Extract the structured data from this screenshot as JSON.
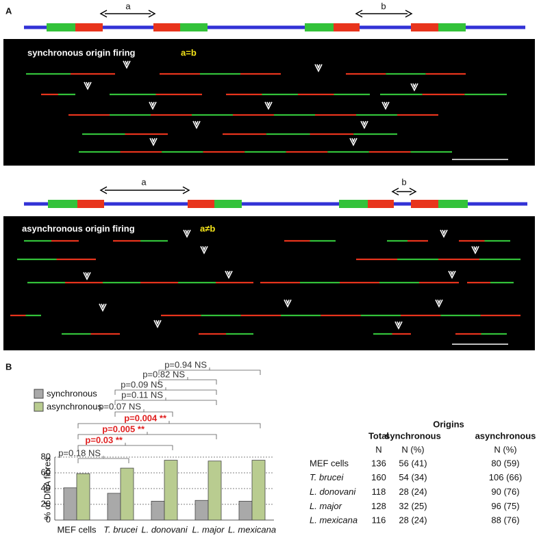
{
  "panels": {
    "a": {
      "label": "A",
      "schematic_1": {
        "arrow_a": "a",
        "arrow_b": "b"
      },
      "image_1": {
        "caption": "synchronous origin firing",
        "relation": "a=b"
      },
      "schematic_2": {
        "arrow_a": "a",
        "arrow_b": "b"
      },
      "image_2": {
        "caption": "asynchronous origin firing",
        "relation": "a≠b"
      }
    },
    "b": {
      "label": "B"
    }
  },
  "chart_data": {
    "type": "bar",
    "y_label": "% of DNA fibres",
    "categories": [
      "MEF cells",
      "T. brucei",
      "L. donovani",
      "L. major",
      "L. mexicana"
    ],
    "series": [
      {
        "name": "synchronous",
        "color": "#a9a9a9",
        "values": [
          41,
          34,
          24,
          25,
          24
        ]
      },
      {
        "name": "asynchronous",
        "color": "#b9cc90",
        "values": [
          59,
          66,
          76,
          75,
          76
        ]
      }
    ],
    "ylim": [
      0,
      80
    ],
    "yticks": [
      0,
      20,
      40,
      60,
      80
    ],
    "grid": true,
    "legend": "top-left",
    "annotations": [
      {
        "text": "p=0.94 NS",
        "color": "#333333"
      },
      {
        "text": "p=0.82 NS",
        "color": "#333333"
      },
      {
        "text": "p=0.09 NS",
        "color": "#333333"
      },
      {
        "text": "p=0.11 NS",
        "color": "#333333"
      },
      {
        "text": "p=0.07 NS",
        "color": "#333333"
      },
      {
        "text": "p=0.004 **",
        "color": "#e02020"
      },
      {
        "text": "p=0.005 **",
        "color": "#e02020"
      },
      {
        "text": "p=0.03 **",
        "color": "#e02020"
      },
      {
        "text": "p=0.18 NS",
        "color": "#333333"
      }
    ]
  },
  "table": {
    "group_header": "Origins",
    "columns": [
      "Total",
      "synchronous",
      "asynchronous"
    ],
    "units": [
      "N",
      "N (%)",
      "N (%)"
    ],
    "rows": [
      [
        "MEF cells",
        "136",
        "56 (41)",
        "80 (59)"
      ],
      [
        "T. brucei",
        "160",
        "54 (34)",
        "106 (66)"
      ],
      [
        "L. donovani",
        "118",
        "28 (24)",
        "90 (76)"
      ],
      [
        "L. major",
        "128",
        "32 (25)",
        "96 (75)"
      ],
      [
        "L. mexicana",
        "116",
        "28 (24)",
        "88 (76)"
      ]
    ]
  }
}
